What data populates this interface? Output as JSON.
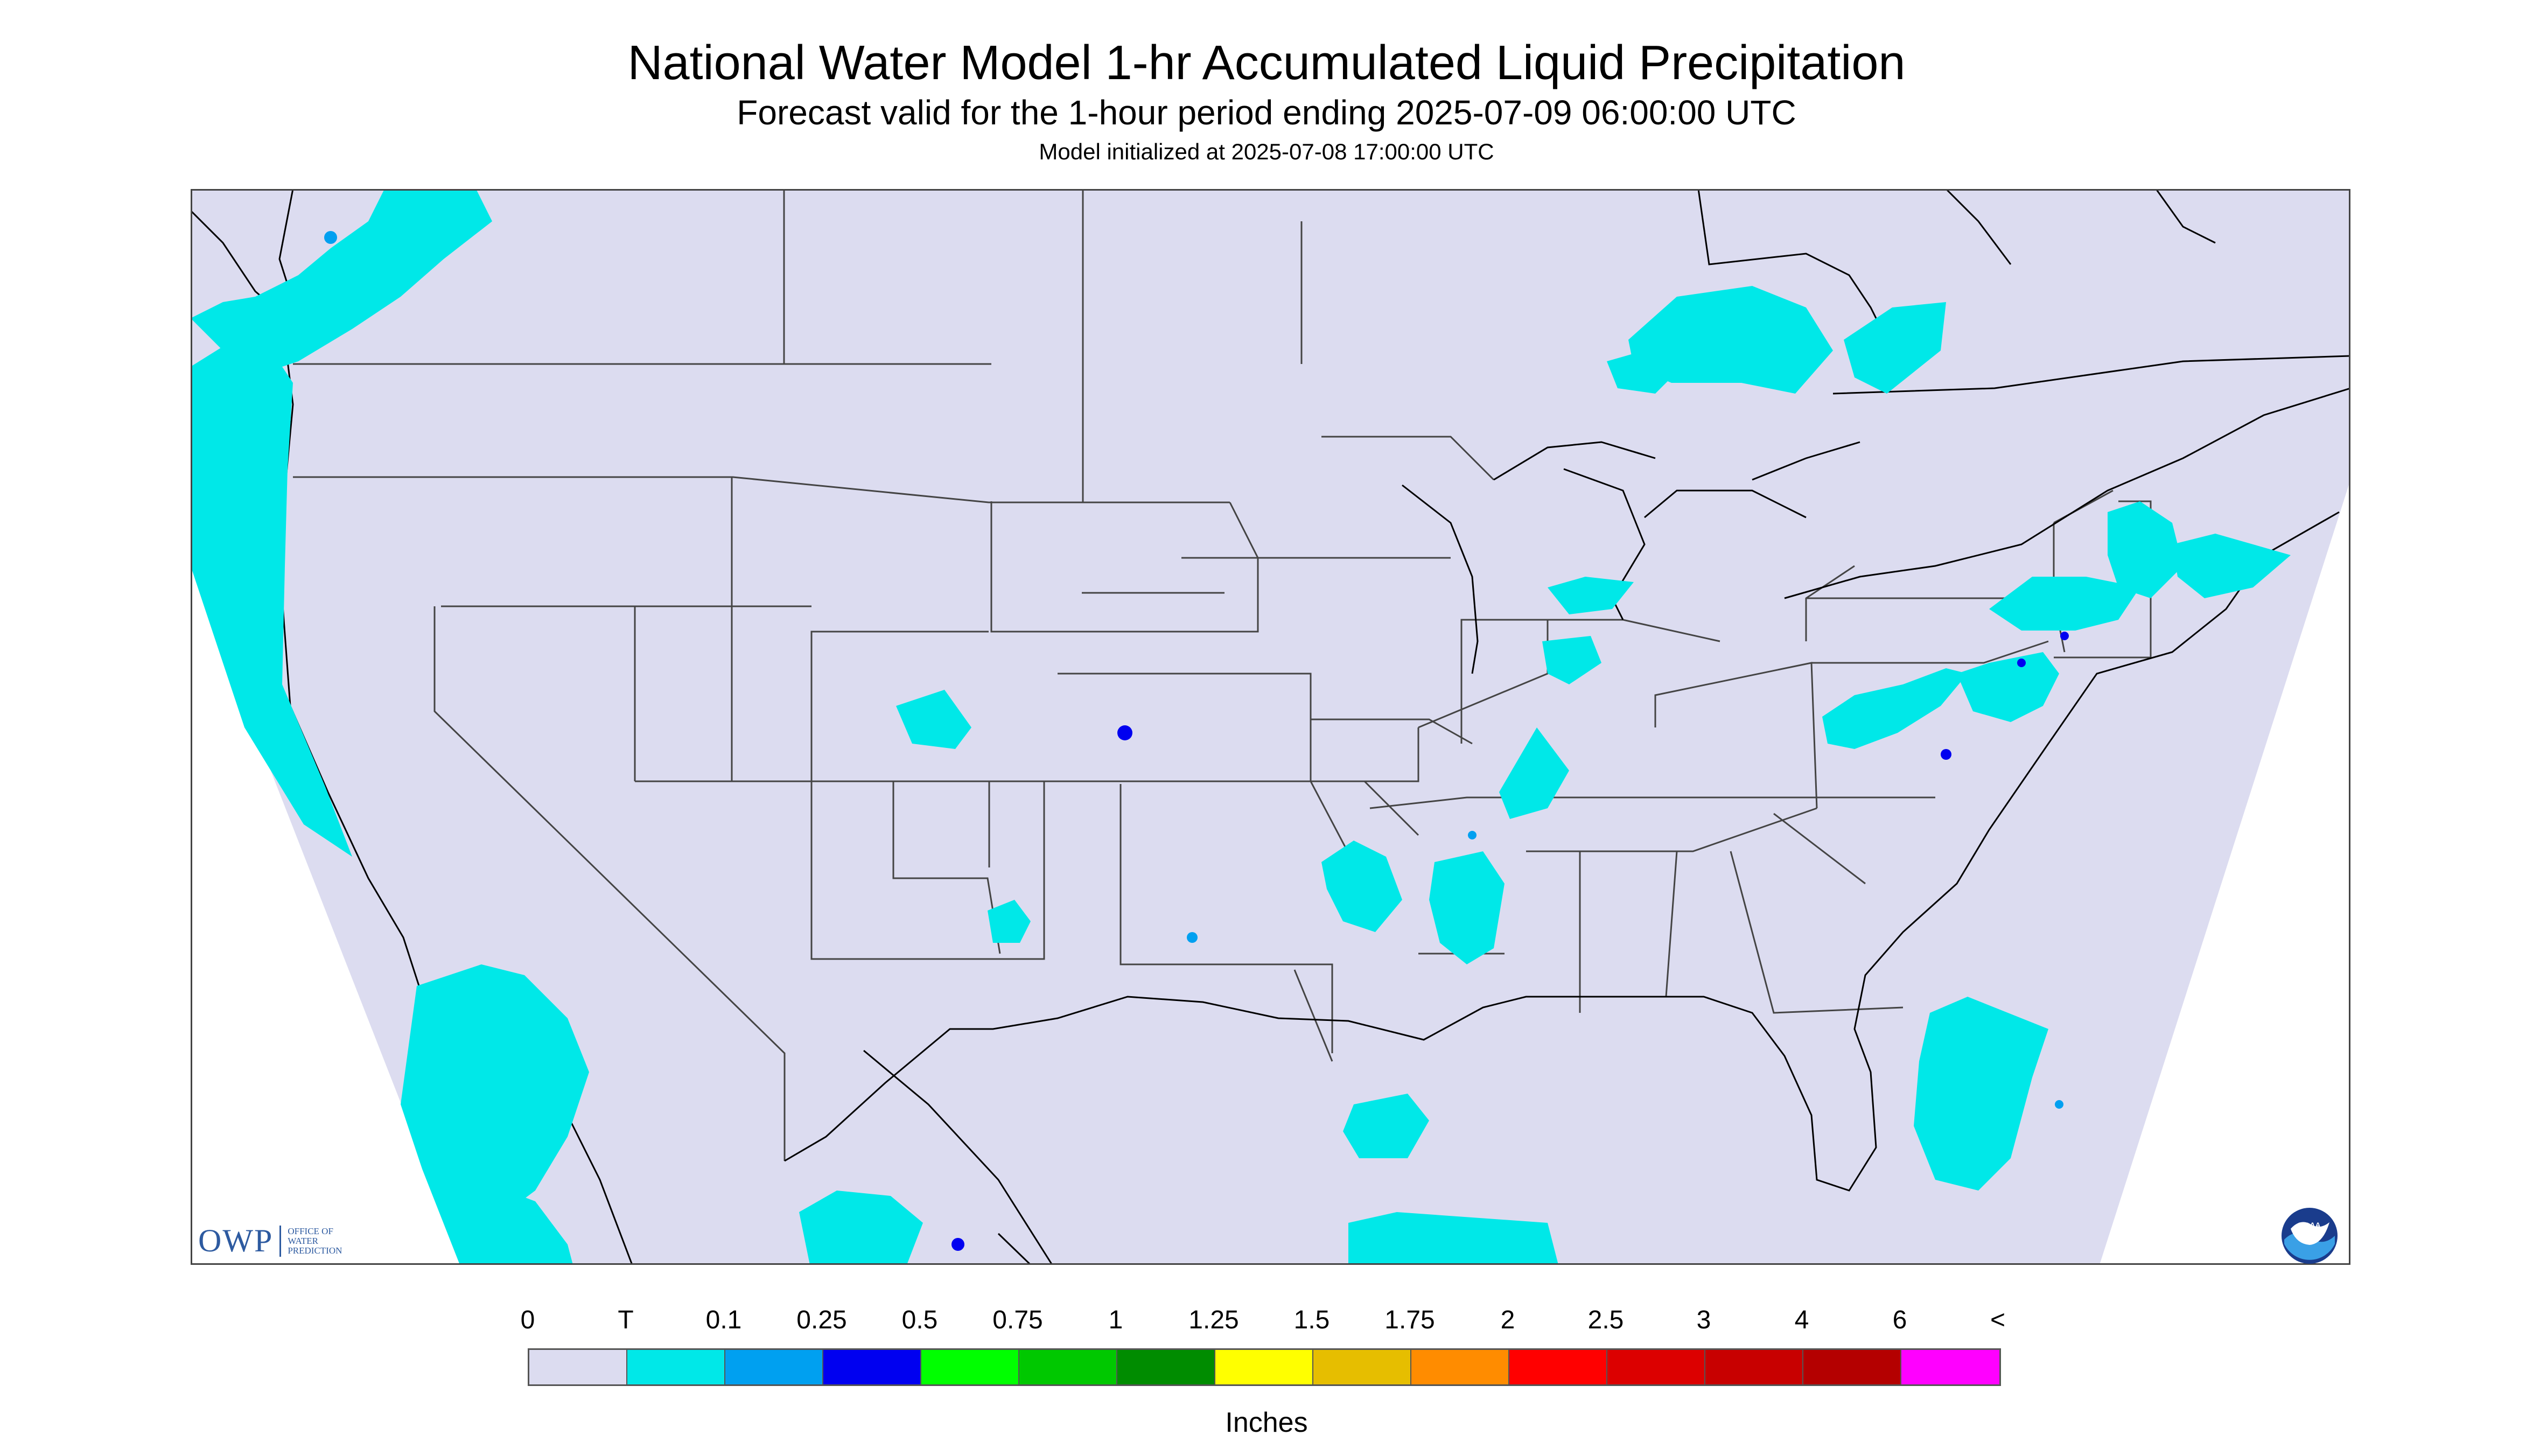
{
  "header": {
    "title": "National Water Model 1-hr Accumulated Liquid Precipitation",
    "subtitle": "Forecast valid for the 1-hour period ending 2025-07-09 06:00:00 UTC",
    "init_line": "Model initialized at 2025-07-08 17:00:00 UTC"
  },
  "legend": {
    "units": "Inches",
    "labels": [
      "0",
      "T",
      "0.1",
      "0.25",
      "0.5",
      "0.75",
      "1",
      "1.25",
      "1.5",
      "1.75",
      "2",
      "2.5",
      "3",
      "4",
      "6",
      "<"
    ],
    "colors": [
      "#dcdcf0",
      "#00e8e8",
      "#00a0f0",
      "#0000f0",
      "#00ff00",
      "#00c800",
      "#008c00",
      "#ffff00",
      "#e6be00",
      "#ff8c00",
      "#ff0000",
      "#dc0000",
      "#c80000",
      "#b40000",
      "#ff00ff",
      "#9650c8"
    ]
  },
  "logos": {
    "owp_mark": "OWP",
    "owp_sub": "OFFICE OF WATER PREDICTION",
    "noaa": "NOAA"
  },
  "map": {
    "background": "#dcdcf0",
    "outside_domain": "#ffffff",
    "trace_color": "#00e8e8",
    "boundary_color": "#444444",
    "coast_color": "#000000"
  }
}
